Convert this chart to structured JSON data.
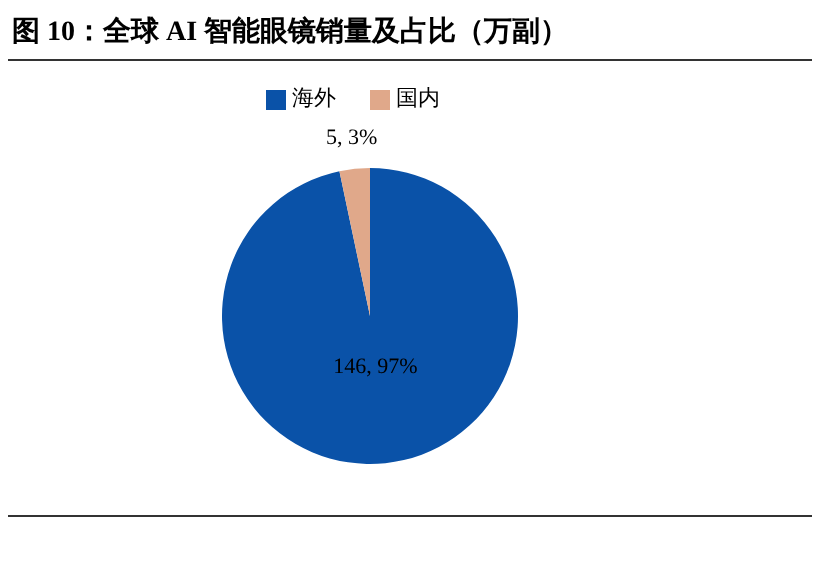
{
  "chart_data": {
    "type": "pie",
    "title": "图 10：全球 AI 智能眼镜销量及占比（万副）",
    "categories": [
      "海外",
      "国内"
    ],
    "values": [
      146,
      5
    ],
    "colors": [
      "#0a52a8",
      "#e0a88a"
    ],
    "value_labels": [
      "146, 97%",
      "5, 3%"
    ],
    "legend": "top"
  }
}
